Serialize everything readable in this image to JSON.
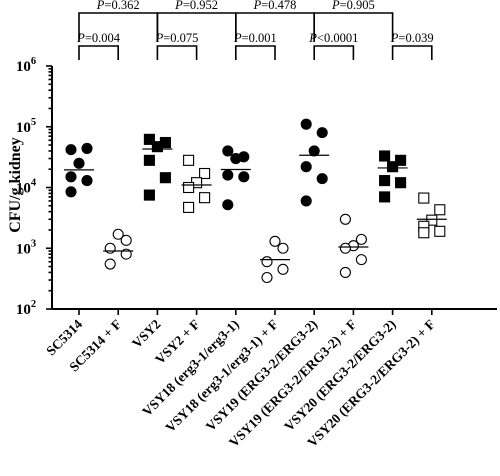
{
  "chart_data": {
    "type": "scatter",
    "ylabel": "CFU/g kidney",
    "yscale": "log",
    "ylim": [
      100,
      1000000
    ],
    "y_ticks": [
      {
        "value": 100,
        "base": "10",
        "exp": "2"
      },
      {
        "value": 1000,
        "base": "10",
        "exp": "3"
      },
      {
        "value": 10000,
        "base": "10",
        "exp": "4"
      },
      {
        "value": 100000,
        "base": "10",
        "exp": "5"
      },
      {
        "value": 1000000,
        "base": "10",
        "exp": "6"
      }
    ],
    "categories": [
      "SC5314",
      "SC5314 + F",
      "VSY2",
      "VSY2 + F",
      "VSY18 (erg3-1/erg3-1)",
      "VSY18 (erg3-1/erg3-1) + F",
      "VSY19 (ERG3-2/ERG3-2)",
      "VSY19 (ERG3-2/ERG3-2) + F",
      "VSY20 (ERG3-2/ERG3-2)",
      "VSY20 (ERG3-2/ERG3-2) + F"
    ],
    "series": [
      {
        "marker": "filled-circle",
        "values": [
          42000,
          44000,
          25000,
          15000,
          13000,
          8500
        ],
        "median": 19500
      },
      {
        "marker": "open-circle",
        "values": [
          1700,
          1350,
          1000,
          800,
          550
        ],
        "median": 900
      },
      {
        "marker": "filled-square",
        "values": [
          62000,
          55000,
          47000,
          28000,
          14500,
          7500
        ],
        "median": 43000
      },
      {
        "marker": "open-square",
        "values": [
          28000,
          17000,
          12000,
          10000,
          6800,
          4700
        ],
        "median": 11000
      },
      {
        "marker": "filled-circle",
        "values": [
          40000,
          32000,
          30000,
          16000,
          15000,
          5200
        ],
        "median": 19800
      },
      {
        "marker": "open-circle",
        "values": [
          1300,
          1000,
          600,
          450,
          330
        ],
        "median": 650
      },
      {
        "marker": "filled-circle",
        "values": [
          110000,
          80000,
          40000,
          22000,
          14000,
          6000
        ],
        "median": 34000
      },
      {
        "marker": "open-circle",
        "values": [
          3000,
          1400,
          1100,
          1000,
          650,
          400
        ],
        "median": 1050
      },
      {
        "marker": "filled-square",
        "values": [
          33000,
          28000,
          22000,
          13000,
          12000,
          7000
        ],
        "median": 21000
      },
      {
        "marker": "open-square",
        "values": [
          6700,
          4300,
          2900,
          2300,
          1900,
          1800
        ],
        "median": 3000
      }
    ],
    "comparisons": [
      {
        "groups": [
          0,
          1
        ],
        "label": "P=0.004",
        "tier": "lower"
      },
      {
        "groups": [
          2,
          3
        ],
        "label": "P=0.075",
        "tier": "lower"
      },
      {
        "groups": [
          4,
          5
        ],
        "label": "P=0.001",
        "tier": "lower"
      },
      {
        "groups": [
          6,
          7
        ],
        "label": "P<0.0001",
        "tier": "lower"
      },
      {
        "groups": [
          8,
          9
        ],
        "label": "P=0.039",
        "tier": "lower"
      },
      {
        "groups": [
          0,
          2
        ],
        "label": "P=0.362",
        "tier": "upper"
      },
      {
        "groups": [
          2,
          4
        ],
        "label": "P=0.952",
        "tier": "upper"
      },
      {
        "groups": [
          4,
          6
        ],
        "label": "P=0.478",
        "tier": "upper"
      },
      {
        "groups": [
          6,
          8
        ],
        "label": "P=0.905",
        "tier": "upper"
      }
    ]
  }
}
